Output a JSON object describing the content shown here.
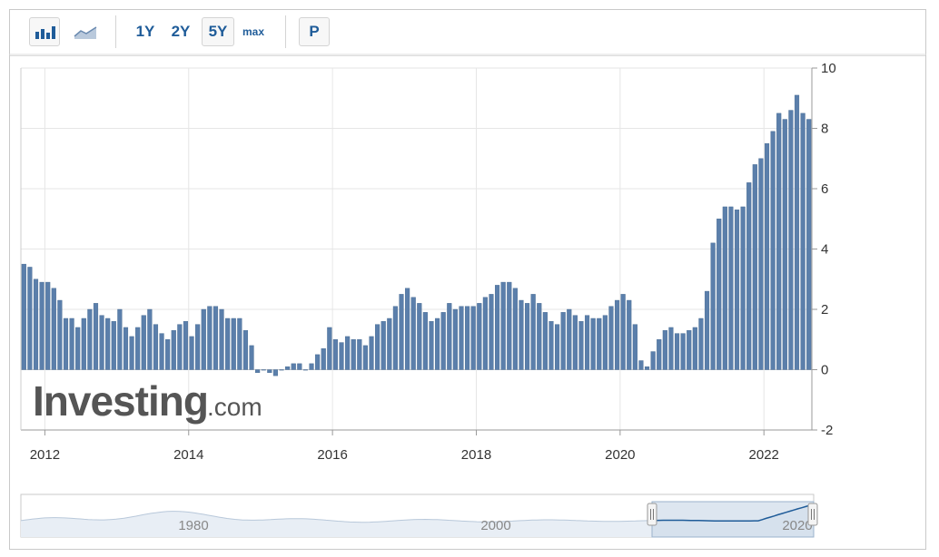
{
  "toolbar": {
    "bar_chart_icon": "bar-chart-icon",
    "line_chart_icon": "line-chart-icon",
    "range_1y": "1Y",
    "range_2y": "2Y",
    "range_5y": "5Y",
    "range_max": "max",
    "p_button": "P"
  },
  "watermark": {
    "brand": "Investing",
    "suffix": ".com"
  },
  "colors": {
    "bar": "#5b7fab",
    "bar_edge": "#44688f",
    "grid": "#e6e6e6",
    "nav_line": "#1f5c99",
    "nav_area": "#a9bdd4"
  },
  "chart_data": {
    "type": "bar",
    "title": "",
    "xlabel": "",
    "ylabel": "",
    "ylim": [
      -2,
      10
    ],
    "yticks": [
      "10",
      "8",
      "6",
      "4",
      "2",
      "0",
      "-2"
    ],
    "xticks": [
      "2012",
      "2014",
      "2016",
      "2018",
      "2020",
      "2022"
    ],
    "grid": true,
    "start": "2011-09",
    "frequency": "monthly",
    "values": [
      3.5,
      3.4,
      3.0,
      2.9,
      2.9,
      2.7,
      2.3,
      1.7,
      1.7,
      1.4,
      1.7,
      2.0,
      2.2,
      1.8,
      1.7,
      1.6,
      2.0,
      1.4,
      1.1,
      1.4,
      1.8,
      2.0,
      1.5,
      1.2,
      1.0,
      1.3,
      1.5,
      1.6,
      1.1,
      1.5,
      2.0,
      2.1,
      2.1,
      2.0,
      1.7,
      1.7,
      1.7,
      1.3,
      0.8,
      -0.1,
      0.0,
      -0.1,
      -0.2,
      0.0,
      0.1,
      0.2,
      0.2,
      0.0,
      0.2,
      0.5,
      0.7,
      1.4,
      1.0,
      0.9,
      1.1,
      1.0,
      1.0,
      0.8,
      1.1,
      1.5,
      1.6,
      1.7,
      2.1,
      2.5,
      2.7,
      2.4,
      2.2,
      1.9,
      1.6,
      1.7,
      1.9,
      2.2,
      2.0,
      2.1,
      2.1,
      2.1,
      2.2,
      2.4,
      2.5,
      2.8,
      2.9,
      2.9,
      2.7,
      2.3,
      2.2,
      2.5,
      2.2,
      1.9,
      1.6,
      1.5,
      1.9,
      2.0,
      1.8,
      1.6,
      1.8,
      1.7,
      1.7,
      1.8,
      2.1,
      2.3,
      2.5,
      2.3,
      1.5,
      0.3,
      0.1,
      0.6,
      1.0,
      1.3,
      1.4,
      1.2,
      1.2,
      1.3,
      1.4,
      1.7,
      2.6,
      4.2,
      5.0,
      5.4,
      5.4,
      5.3,
      5.4,
      6.2,
      6.8,
      7.0,
      7.5,
      7.9,
      8.5,
      8.3,
      8.6,
      9.1,
      8.5,
      8.3
    ]
  },
  "navigator": {
    "labels": [
      "1980",
      "2000",
      "2020"
    ]
  }
}
